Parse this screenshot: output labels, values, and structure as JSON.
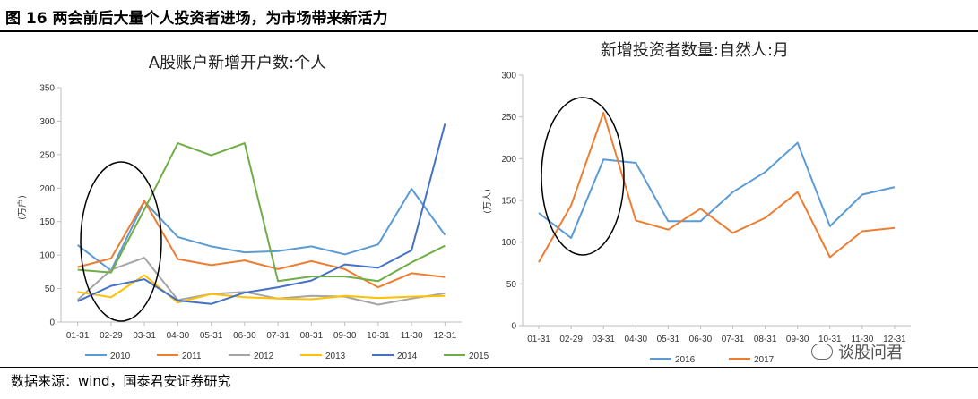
{
  "figure_title": "图 16 两会前后大量个人投资者进场，为市场带来新活力",
  "source_note": "数据来源：wind，国泰君安证券研究",
  "watermark": "谈股问君",
  "chart_data": [
    {
      "type": "line",
      "title": "A股账户新增开户数:个人",
      "ylabel": "(万户)",
      "ylim": [
        0,
        350
      ],
      "yticks": [
        0,
        50,
        100,
        150,
        200,
        250,
        300,
        350
      ],
      "categories": [
        "01-31",
        "02-29",
        "03-31",
        "04-30",
        "05-31",
        "06-30",
        "07-31",
        "08-31",
        "09-30",
        "10-31",
        "11-30",
        "12-31"
      ],
      "legend_position": "bottom",
      "series": [
        {
          "name": "2010",
          "color": "#5B9BD5",
          "values": [
            115,
            77,
            180,
            127,
            113,
            104,
            106,
            113,
            101,
            116,
            199,
            130
          ]
        },
        {
          "name": "2011",
          "color": "#ED7D31",
          "values": [
            82,
            95,
            181,
            94,
            85,
            92,
            79,
            91,
            79,
            52,
            73,
            67
          ]
        },
        {
          "name": "2012",
          "color": "#A5A5A5",
          "values": [
            33,
            78,
            96,
            33,
            42,
            45,
            35,
            39,
            38,
            26,
            35,
            43
          ]
        },
        {
          "name": "2013",
          "color": "#FFC000",
          "values": [
            45,
            37,
            70,
            29,
            42,
            37,
            35,
            34,
            39,
            36,
            38,
            39
          ]
        },
        {
          "name": "2014",
          "color": "#4472C4",
          "values": [
            31,
            54,
            64,
            32,
            27,
            44,
            52,
            62,
            86,
            81,
            107,
            296
          ]
        },
        {
          "name": "2015",
          "color": "#70AD47",
          "values": [
            78,
            74,
            168,
            267,
            249,
            267,
            61,
            68,
            68,
            61,
            89,
            114
          ]
        }
      ]
    },
    {
      "type": "line",
      "title": "新增投资者数量:自然人:月",
      "ylabel": "(万人)",
      "ylim": [
        0,
        300
      ],
      "yticks": [
        0,
        50,
        100,
        150,
        200,
        250,
        300
      ],
      "categories": [
        "01-31",
        "02-29",
        "03-31",
        "04-30",
        "05-31",
        "06-30",
        "07-31",
        "08-31",
        "09-30",
        "10-31",
        "11-30",
        "12-31"
      ],
      "legend_position": "bottom",
      "series": [
        {
          "name": "2016",
          "color": "#5B9BD5",
          "values": [
            135,
            105,
            199,
            195,
            125,
            125,
            160,
            184,
            219,
            119,
            157,
            166
          ]
        },
        {
          "name": "2017",
          "color": "#ED7D31",
          "values": [
            76,
            144,
            255,
            126,
            115,
            140,
            111,
            129,
            160,
            82,
            113,
            117
          ]
        }
      ]
    }
  ]
}
